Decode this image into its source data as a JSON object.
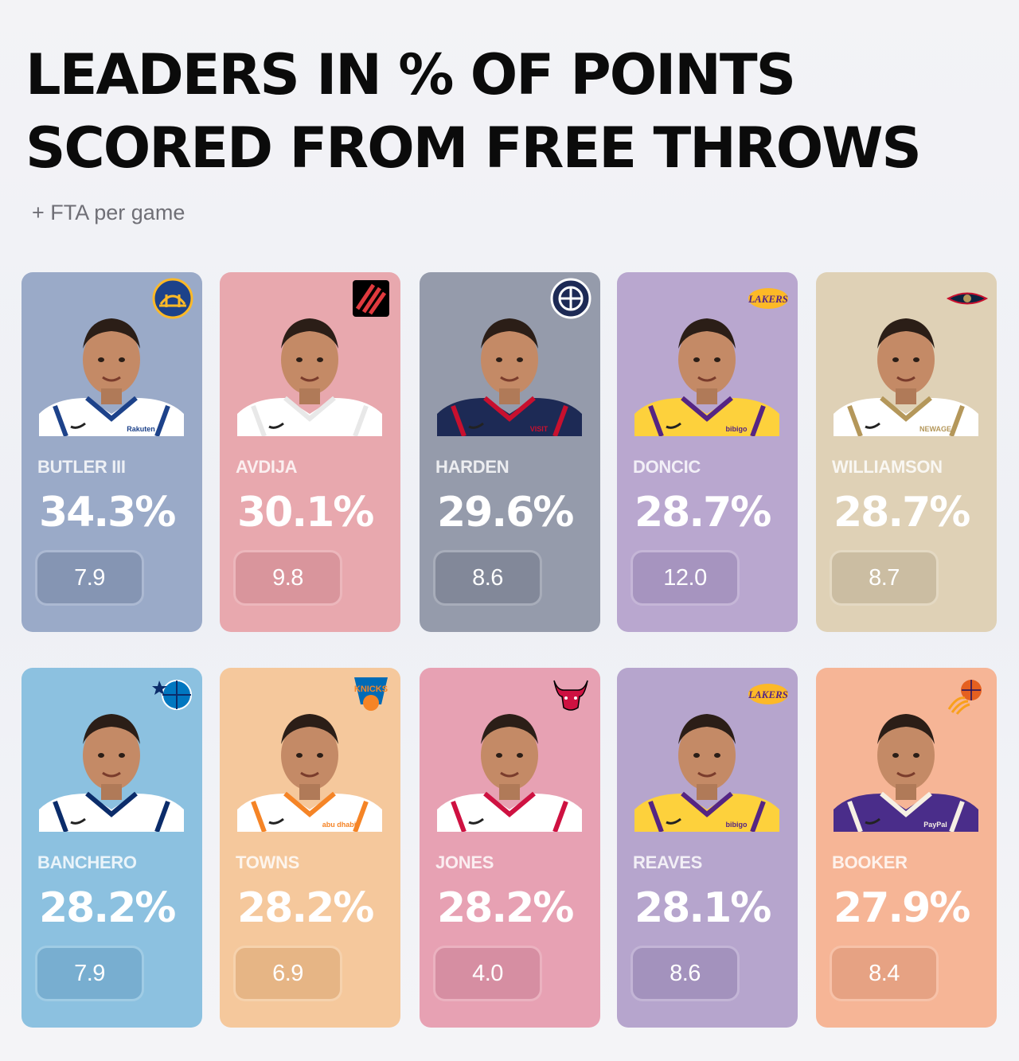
{
  "header": {
    "title_line1": "LEADERS IN % OF POINTS",
    "title_line2": "SCORED FROM FREE THROWS",
    "subtitle": "+ FTA per game"
  },
  "players": [
    {
      "name": "BUTLER III",
      "pct": "34.3%",
      "fta": "7.9",
      "team_icon": "warriors-logo-icon",
      "card_color": "#9aaac8",
      "pill_color": "#8595b3",
      "jersey_color": "#ffffff",
      "trim_color": "#1d428a",
      "sponsor": "Rakuten"
    },
    {
      "name": "AVDIJA",
      "pct": "30.1%",
      "fta": "9.8",
      "team_icon": "trail-blazers-logo-icon",
      "card_color": "#e8a8ae",
      "pill_color": "#d9959c",
      "jersey_color": "#ffffff",
      "trim_color": "#e8e8e8",
      "sponsor": ""
    },
    {
      "name": "HARDEN",
      "pct": "29.6%",
      "fta": "8.6",
      "team_icon": "clippers-logo-icon",
      "card_color": "#959bab",
      "pill_color": "#828899",
      "jersey_color": "#1d2a55",
      "trim_color": "#c8102e",
      "sponsor": "VISIT"
    },
    {
      "name": "DONCIC",
      "pct": "28.7%",
      "fta": "12.0",
      "team_icon": "lakers-logo-icon",
      "card_color": "#b9a7cf",
      "pill_color": "#a694bf",
      "jersey_color": "#fdd13c",
      "trim_color": "#552583",
      "sponsor": "bibigo"
    },
    {
      "name": "WILLIAMSON",
      "pct": "28.7%",
      "fta": "8.7",
      "team_icon": "pelicans-logo-icon",
      "card_color": "#dfd1b6",
      "pill_color": "#cbbda2",
      "jersey_color": "#ffffff",
      "trim_color": "#b4975a",
      "sponsor": "NEWAGE"
    },
    {
      "name": "BANCHERO",
      "pct": "28.2%",
      "fta": "7.9",
      "team_icon": "magic-logo-icon",
      "card_color": "#8cc1e0",
      "pill_color": "#78aed0",
      "jersey_color": "#ffffff",
      "trim_color": "#0b2c6a",
      "sponsor": ""
    },
    {
      "name": "TOWNS",
      "pct": "28.2%",
      "fta": "6.9",
      "team_icon": "knicks-logo-icon",
      "card_color": "#f5c89c",
      "pill_color": "#e6b585",
      "jersey_color": "#ffffff",
      "trim_color": "#f58426",
      "sponsor": "abu dhabi"
    },
    {
      "name": "JONES",
      "pct": "28.2%",
      "fta": "4.0",
      "team_icon": "bulls-logo-icon",
      "card_color": "#e7a1b3",
      "pill_color": "#d68ea2",
      "jersey_color": "#ffffff",
      "trim_color": "#ce1141",
      "sponsor": ""
    },
    {
      "name": "REAVES",
      "pct": "28.1%",
      "fta": "8.6",
      "team_icon": "lakers-logo-icon",
      "card_color": "#b6a5cd",
      "pill_color": "#a392bd",
      "jersey_color": "#fdd13c",
      "trim_color": "#552583",
      "sponsor": "bibigo"
    },
    {
      "name": "BOOKER",
      "pct": "27.9%",
      "fta": "8.4",
      "team_icon": "suns-logo-icon",
      "card_color": "#f6b596",
      "pill_color": "#e6a283",
      "jersey_color": "#4a2d8a",
      "trim_color": "#f6f0e4",
      "sponsor": "PayPal"
    }
  ]
}
